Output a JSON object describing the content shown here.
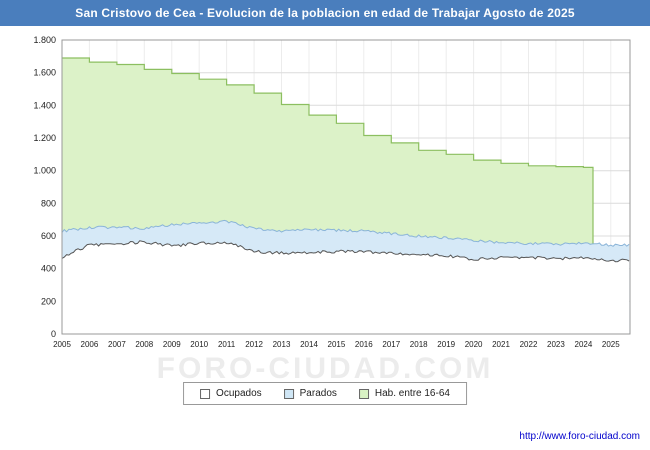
{
  "title": "San Cristovo de Cea - Evolucion de la poblacion en edad de Trabajar Agosto de 2025",
  "url_label": "http://www.foro-ciudad.com",
  "watermark": "FORO-CIUDAD.COM",
  "colors": {
    "titlebar": "#4a7ebd",
    "plot_border": "#999999",
    "grid_h": "#dcdcdc",
    "grid_v": "#ececec",
    "axis_text": "#222222"
  },
  "legend": {
    "items": [
      {
        "label": "Ocupados",
        "color": "#ffffff"
      },
      {
        "label": "Parados",
        "color": "#cfe6f5"
      },
      {
        "label": "Hab. entre 16-64",
        "color": "#d9f2c4"
      }
    ]
  },
  "chart_data": {
    "type": "area",
    "stacked": true,
    "title": "San Cristovo de Cea - Evolucion de la poblacion en edad de Trabajar Agosto de 2025",
    "xlabel": "",
    "ylabel": "",
    "ylim": [
      0,
      1800
    ],
    "grid": true,
    "legend_position": "bottom",
    "last_data_point": "Agosto 2025",
    "x_years": [
      2005,
      2006,
      2007,
      2008,
      2009,
      2010,
      2011,
      2012,
      2013,
      2014,
      2015,
      2016,
      2017,
      2018,
      2019,
      2020,
      2021,
      2022,
      2023,
      2024,
      2025
    ],
    "xtick_labels": [
      "2005",
      "2006",
      "2007",
      "2008",
      "2009",
      "2010",
      "2011",
      "2012",
      "2013",
      "2014",
      "2015",
      "2016",
      "2017",
      "2018",
      "2019",
      "2020",
      "2021",
      "2022",
      "2023",
      "2024",
      "2025"
    ],
    "ytick_labels": [
      "0",
      "200",
      "400",
      "600",
      "800",
      "1.000",
      "1.200",
      "1.400",
      "1.600",
      "1.800"
    ],
    "series": [
      {
        "name": "Ocupados",
        "color_fill": "#ffffff",
        "color_line": "#555555",
        "values": [
          470,
          545,
          550,
          565,
          540,
          555,
          560,
          505,
          495,
          500,
          505,
          505,
          495,
          490,
          480,
          455,
          470,
          470,
          460,
          470,
          450
        ]
      },
      {
        "name": "Parados",
        "note": "stacked on top of Ocupados",
        "color_fill": "#d6e9f7",
        "color_line": "#8ab4d8",
        "values": [
          160,
          105,
          105,
          80,
          130,
          125,
          130,
          140,
          135,
          140,
          130,
          125,
          120,
          110,
          110,
          120,
          90,
          85,
          90,
          90,
          95
        ]
      },
      {
        "name": "Hab. entre 16-64",
        "note": "annual padron step series, ends early 2024",
        "color_fill": "#dcf2c8",
        "color_line": "#8cbf60",
        "values": [
          1690,
          1665,
          1650,
          1620,
          1595,
          1560,
          1525,
          1475,
          1405,
          1340,
          1290,
          1215,
          1170,
          1125,
          1100,
          1065,
          1045,
          1030,
          1025,
          1020,
          null
        ]
      }
    ]
  }
}
